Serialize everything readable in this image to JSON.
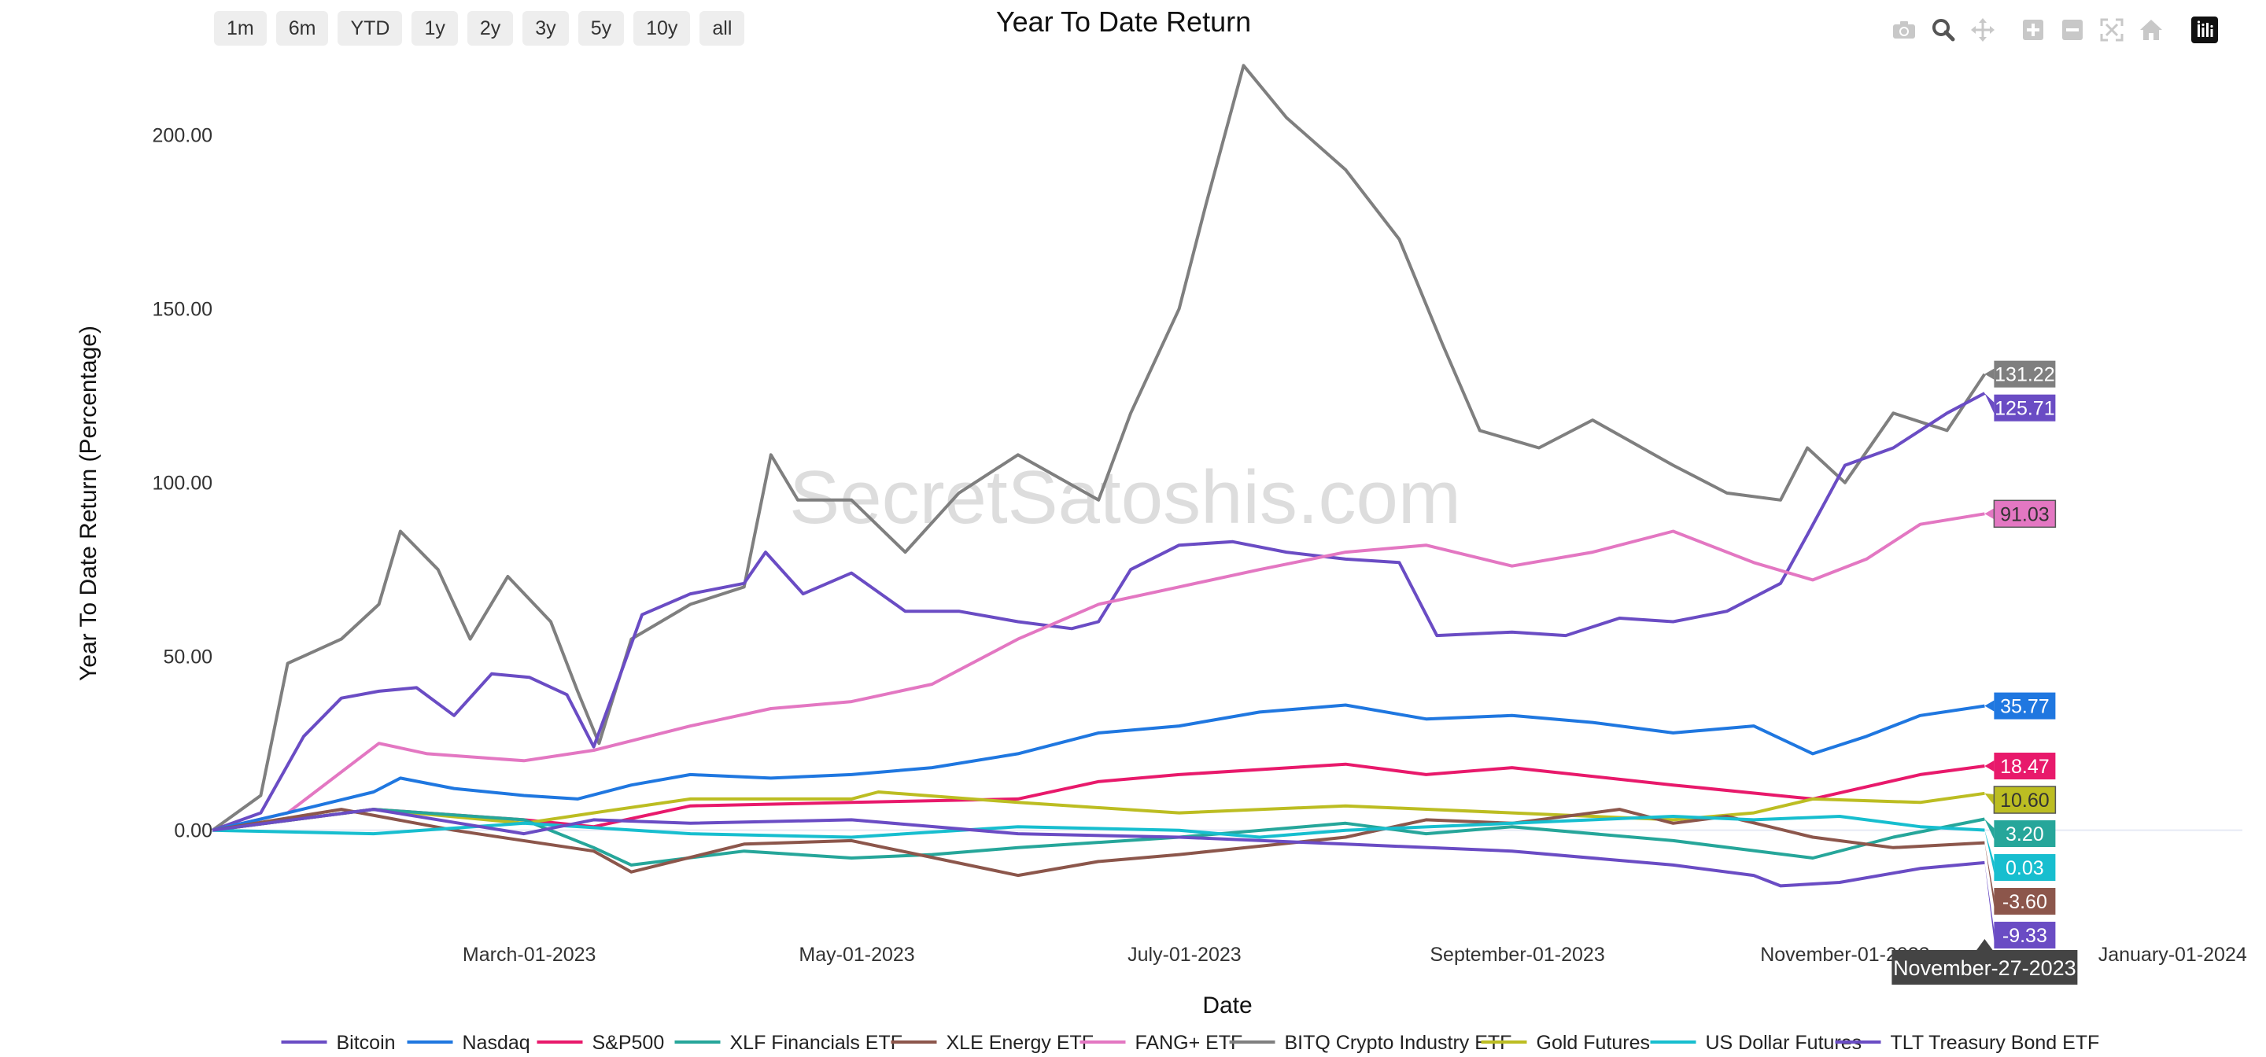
{
  "range_buttons": [
    "1m",
    "6m",
    "YTD",
    "1y",
    "2y",
    "3y",
    "5y",
    "10y",
    "all"
  ],
  "modebar": {
    "camera": "camera-icon",
    "zoom": "zoom-icon",
    "pan": "pan-icon",
    "zoom_in": "zoom-in-icon",
    "zoom_out": "zoom-out-icon",
    "autoscale": "autoscale-icon",
    "reset": "home-icon",
    "plotly": "plotly-logo-icon"
  },
  "watermark": "SecretSatoshis.com",
  "hover_label": "November-27-2023",
  "chart_data": {
    "type": "line",
    "title": "Year To Date Return",
    "xlabel": "Date",
    "ylabel": "Year To Date Return (Percentage)",
    "x_range": [
      "2023-01-01",
      "2024-01-14"
    ],
    "y_range": [
      -27,
      223
    ],
    "x_ticks": [
      {
        "date": "2023-03-01",
        "label": "March-01-2023"
      },
      {
        "date": "2023-05-01",
        "label": "May-01-2023"
      },
      {
        "date": "2023-07-01",
        "label": "July-01-2023"
      },
      {
        "date": "2023-09-01",
        "label": "September-01-2023"
      },
      {
        "date": "2023-11-01",
        "label": "November-01-2023"
      },
      {
        "date": "2024-01-01",
        "label": "January-01-2024"
      }
    ],
    "y_ticks": [
      {
        "value": 0,
        "label": "0.00"
      },
      {
        "value": 50,
        "label": "50.00"
      },
      {
        "value": 100,
        "label": "100.00"
      },
      {
        "value": 150,
        "label": "150.00"
      },
      {
        "value": 200,
        "label": "200.00"
      }
    ],
    "grid": false,
    "legend": "bottom",
    "series": [
      {
        "name": "Bitcoin",
        "color": "#6a4cc4",
        "end_label": "125.71",
        "label_text_color": "#ffffff",
        "points": [
          [
            "2023-01-01",
            0
          ],
          [
            "2023-01-10",
            5
          ],
          [
            "2023-01-18",
            27
          ],
          [
            "2023-01-25",
            38
          ],
          [
            "2023-02-01",
            40
          ],
          [
            "2023-02-08",
            41
          ],
          [
            "2023-02-15",
            33
          ],
          [
            "2023-02-22",
            45
          ],
          [
            "2023-03-01",
            44
          ],
          [
            "2023-03-08",
            39
          ],
          [
            "2023-03-13",
            24
          ],
          [
            "2023-03-18",
            45
          ],
          [
            "2023-03-22",
            62
          ],
          [
            "2023-03-31",
            68
          ],
          [
            "2023-04-10",
            71
          ],
          [
            "2023-04-14",
            80
          ],
          [
            "2023-04-21",
            68
          ],
          [
            "2023-04-30",
            74
          ],
          [
            "2023-05-10",
            63
          ],
          [
            "2023-05-20",
            63
          ],
          [
            "2023-05-31",
            60
          ],
          [
            "2023-06-10",
            58
          ],
          [
            "2023-06-15",
            60
          ],
          [
            "2023-06-21",
            75
          ],
          [
            "2023-06-30",
            82
          ],
          [
            "2023-07-10",
            83
          ],
          [
            "2023-07-20",
            80
          ],
          [
            "2023-07-31",
            78
          ],
          [
            "2023-08-10",
            77
          ],
          [
            "2023-08-17",
            56
          ],
          [
            "2023-08-31",
            57
          ],
          [
            "2023-09-10",
            56
          ],
          [
            "2023-09-20",
            61
          ],
          [
            "2023-09-30",
            60
          ],
          [
            "2023-10-10",
            63
          ],
          [
            "2023-10-20",
            71
          ],
          [
            "2023-10-25",
            85
          ],
          [
            "2023-11-01",
            105
          ],
          [
            "2023-11-10",
            110
          ],
          [
            "2023-11-20",
            120
          ],
          [
            "2023-11-27",
            125.71
          ]
        ]
      },
      {
        "name": "Nasdaq",
        "color": "#1f77e0",
        "end_label": "35.77",
        "label_text_color": "#ffffff",
        "points": [
          [
            "2023-01-01",
            0
          ],
          [
            "2023-01-15",
            5
          ],
          [
            "2023-01-31",
            11
          ],
          [
            "2023-02-05",
            15
          ],
          [
            "2023-02-15",
            12
          ],
          [
            "2023-02-28",
            10
          ],
          [
            "2023-03-10",
            9
          ],
          [
            "2023-03-20",
            13
          ],
          [
            "2023-03-31",
            16
          ],
          [
            "2023-04-15",
            15
          ],
          [
            "2023-04-30",
            16
          ],
          [
            "2023-05-15",
            18
          ],
          [
            "2023-05-31",
            22
          ],
          [
            "2023-06-15",
            28
          ],
          [
            "2023-06-30",
            30
          ],
          [
            "2023-07-15",
            34
          ],
          [
            "2023-07-31",
            36
          ],
          [
            "2023-08-15",
            32
          ],
          [
            "2023-08-31",
            33
          ],
          [
            "2023-09-15",
            31
          ],
          [
            "2023-09-30",
            28
          ],
          [
            "2023-10-15",
            30
          ],
          [
            "2023-10-26",
            22
          ],
          [
            "2023-11-05",
            27
          ],
          [
            "2023-11-15",
            33
          ],
          [
            "2023-11-27",
            35.77
          ]
        ]
      },
      {
        "name": "S&P500",
        "color": "#e8196b",
        "end_label": "18.47",
        "label_text_color": "#ffffff",
        "points": [
          [
            "2023-01-01",
            0
          ],
          [
            "2023-01-31",
            6
          ],
          [
            "2023-02-28",
            3
          ],
          [
            "2023-03-13",
            1
          ],
          [
            "2023-03-31",
            7
          ],
          [
            "2023-04-30",
            8
          ],
          [
            "2023-05-31",
            9
          ],
          [
            "2023-06-15",
            14
          ],
          [
            "2023-06-30",
            16
          ],
          [
            "2023-07-31",
            19
          ],
          [
            "2023-08-15",
            16
          ],
          [
            "2023-08-31",
            18
          ],
          [
            "2023-09-30",
            13
          ],
          [
            "2023-10-26",
            9
          ],
          [
            "2023-11-15",
            16
          ],
          [
            "2023-11-27",
            18.47
          ]
        ]
      },
      {
        "name": "XLF Financials ETF",
        "color": "#26a69a",
        "end_label": "3.20",
        "label_text_color": "#ffffff",
        "points": [
          [
            "2023-01-01",
            0
          ],
          [
            "2023-01-31",
            6
          ],
          [
            "2023-02-28",
            3
          ],
          [
            "2023-03-13",
            -5
          ],
          [
            "2023-03-20",
            -10
          ],
          [
            "2023-04-10",
            -6
          ],
          [
            "2023-04-30",
            -8
          ],
          [
            "2023-05-15",
            -7
          ],
          [
            "2023-05-31",
            -5
          ],
          [
            "2023-06-30",
            -2
          ],
          [
            "2023-07-31",
            2
          ],
          [
            "2023-08-15",
            -1
          ],
          [
            "2023-08-31",
            1
          ],
          [
            "2023-09-30",
            -3
          ],
          [
            "2023-10-26",
            -8
          ],
          [
            "2023-11-10",
            -2
          ],
          [
            "2023-11-27",
            3.2
          ]
        ]
      },
      {
        "name": "XLE Energy ETF",
        "color": "#8c564b",
        "end_label": "-3.60",
        "label_text_color": "#ffffff",
        "points": [
          [
            "2023-01-01",
            0
          ],
          [
            "2023-01-25",
            6
          ],
          [
            "2023-02-15",
            0
          ],
          [
            "2023-03-13",
            -6
          ],
          [
            "2023-03-20",
            -12
          ],
          [
            "2023-04-10",
            -4
          ],
          [
            "2023-04-30",
            -3
          ],
          [
            "2023-05-31",
            -13
          ],
          [
            "2023-06-15",
            -9
          ],
          [
            "2023-06-30",
            -7
          ],
          [
            "2023-07-31",
            -2
          ],
          [
            "2023-08-15",
            3
          ],
          [
            "2023-08-31",
            2
          ],
          [
            "2023-09-20",
            6
          ],
          [
            "2023-09-30",
            2
          ],
          [
            "2023-10-10",
            4
          ],
          [
            "2023-10-26",
            -2
          ],
          [
            "2023-11-10",
            -5
          ],
          [
            "2023-11-27",
            -3.6
          ]
        ]
      },
      {
        "name": "FANG+ ETF",
        "color": "#e377c2",
        "end_label": "91.03",
        "label_text_color": "#333333",
        "points": [
          [
            "2023-01-01",
            0
          ],
          [
            "2023-01-15",
            5
          ],
          [
            "2023-02-01",
            25
          ],
          [
            "2023-02-10",
            22
          ],
          [
            "2023-02-28",
            20
          ],
          [
            "2023-03-13",
            23
          ],
          [
            "2023-03-31",
            30
          ],
          [
            "2023-04-15",
            35
          ],
          [
            "2023-04-30",
            37
          ],
          [
            "2023-05-15",
            42
          ],
          [
            "2023-05-31",
            55
          ],
          [
            "2023-06-15",
            65
          ],
          [
            "2023-06-30",
            70
          ],
          [
            "2023-07-15",
            75
          ],
          [
            "2023-07-31",
            80
          ],
          [
            "2023-08-15",
            82
          ],
          [
            "2023-08-31",
            76
          ],
          [
            "2023-09-15",
            80
          ],
          [
            "2023-09-30",
            86
          ],
          [
            "2023-10-15",
            77
          ],
          [
            "2023-10-26",
            72
          ],
          [
            "2023-11-05",
            78
          ],
          [
            "2023-11-15",
            88
          ],
          [
            "2023-11-27",
            91.03
          ]
        ]
      },
      {
        "name": "BITQ Crypto Industry ETF",
        "color": "#7f7f7f",
        "end_label": "131.22",
        "label_text_color": "#ffffff",
        "points": [
          [
            "2023-01-01",
            0
          ],
          [
            "2023-01-10",
            10
          ],
          [
            "2023-01-15",
            48
          ],
          [
            "2023-01-25",
            55
          ],
          [
            "2023-02-01",
            65
          ],
          [
            "2023-02-05",
            86
          ],
          [
            "2023-02-12",
            75
          ],
          [
            "2023-02-18",
            55
          ],
          [
            "2023-02-25",
            73
          ],
          [
            "2023-03-05",
            60
          ],
          [
            "2023-03-10",
            40
          ],
          [
            "2023-03-14",
            25
          ],
          [
            "2023-03-20",
            55
          ],
          [
            "2023-03-31",
            65
          ],
          [
            "2023-04-10",
            70
          ],
          [
            "2023-04-15",
            108
          ],
          [
            "2023-04-20",
            95
          ],
          [
            "2023-04-30",
            95
          ],
          [
            "2023-05-10",
            80
          ],
          [
            "2023-05-20",
            97
          ],
          [
            "2023-05-31",
            108
          ],
          [
            "2023-06-15",
            95
          ],
          [
            "2023-06-21",
            120
          ],
          [
            "2023-06-30",
            150
          ],
          [
            "2023-07-05",
            180
          ],
          [
            "2023-07-12",
            220
          ],
          [
            "2023-07-20",
            205
          ],
          [
            "2023-07-31",
            190
          ],
          [
            "2023-08-10",
            170
          ],
          [
            "2023-08-18",
            140
          ],
          [
            "2023-08-25",
            115
          ],
          [
            "2023-09-05",
            110
          ],
          [
            "2023-09-15",
            118
          ],
          [
            "2023-09-30",
            105
          ],
          [
            "2023-10-10",
            97
          ],
          [
            "2023-10-20",
            95
          ],
          [
            "2023-10-25",
            110
          ],
          [
            "2023-11-01",
            100
          ],
          [
            "2023-11-10",
            120
          ],
          [
            "2023-11-20",
            115
          ],
          [
            "2023-11-27",
            131.22
          ]
        ]
      },
      {
        "name": "Gold Futures",
        "color": "#bcbd22",
        "end_label": "10.60",
        "label_text_color": "#333333",
        "points": [
          [
            "2023-01-01",
            0
          ],
          [
            "2023-01-31",
            6
          ],
          [
            "2023-02-28",
            2
          ],
          [
            "2023-03-13",
            5
          ],
          [
            "2023-03-31",
            9
          ],
          [
            "2023-04-30",
            9
          ],
          [
            "2023-05-05",
            11
          ],
          [
            "2023-05-31",
            8
          ],
          [
            "2023-06-30",
            5
          ],
          [
            "2023-07-31",
            7
          ],
          [
            "2023-08-31",
            5
          ],
          [
            "2023-09-30",
            3
          ],
          [
            "2023-10-15",
            5
          ],
          [
            "2023-10-26",
            9
          ],
          [
            "2023-11-15",
            8
          ],
          [
            "2023-11-27",
            10.6
          ]
        ]
      },
      {
        "name": "US Dollar Futures",
        "color": "#17becf",
        "end_label": "0.03",
        "label_text_color": "#ffffff",
        "points": [
          [
            "2023-01-01",
            0
          ],
          [
            "2023-01-31",
            -1
          ],
          [
            "2023-02-28",
            2
          ],
          [
            "2023-03-31",
            -1
          ],
          [
            "2023-04-30",
            -2
          ],
          [
            "2023-05-31",
            1
          ],
          [
            "2023-06-30",
            0
          ],
          [
            "2023-07-15",
            -2
          ],
          [
            "2023-07-31",
            0
          ],
          [
            "2023-08-31",
            2
          ],
          [
            "2023-09-30",
            4
          ],
          [
            "2023-10-15",
            3
          ],
          [
            "2023-10-31",
            4
          ],
          [
            "2023-11-15",
            1
          ],
          [
            "2023-11-27",
            0.03
          ]
        ]
      },
      {
        "name": "TLT Treasury Bond ETF",
        "color": "#6a4cc4",
        "end_label": "-9.33",
        "label_text_color": "#ffffff",
        "points": [
          [
            "2023-01-01",
            0
          ],
          [
            "2023-01-31",
            6
          ],
          [
            "2023-02-28",
            -1
          ],
          [
            "2023-03-13",
            3
          ],
          [
            "2023-03-31",
            2
          ],
          [
            "2023-04-30",
            3
          ],
          [
            "2023-05-31",
            -1
          ],
          [
            "2023-06-30",
            -2
          ],
          [
            "2023-07-31",
            -4
          ],
          [
            "2023-08-31",
            -6
          ],
          [
            "2023-09-30",
            -10
          ],
          [
            "2023-10-15",
            -13
          ],
          [
            "2023-10-20",
            -16
          ],
          [
            "2023-10-31",
            -15
          ],
          [
            "2023-11-15",
            -11
          ],
          [
            "2023-11-27",
            -9.33
          ]
        ]
      }
    ]
  }
}
